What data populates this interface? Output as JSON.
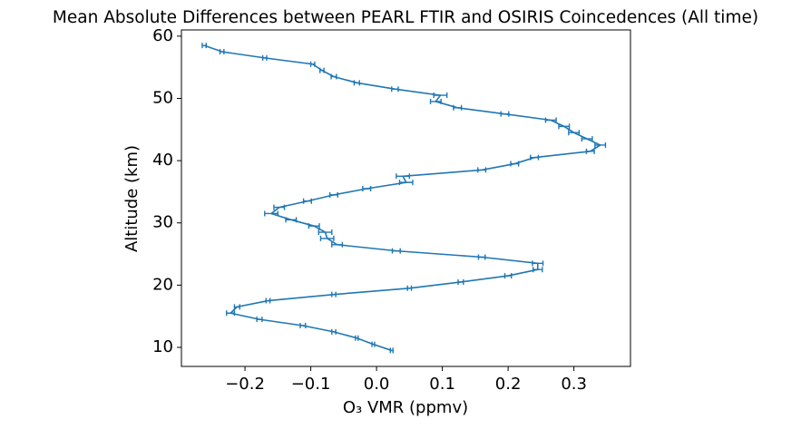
{
  "chart_data": {
    "type": "line",
    "title": "Mean Absolute Differences between PEARL FTIR and OSIRIS Coincedences (All time)",
    "xlabel": "O₃ VMR (ppmv)",
    "ylabel": "Altitude (km)",
    "y": [
      9.5,
      10.5,
      11.5,
      12.5,
      13.5,
      14.5,
      15.5,
      16.5,
      17.5,
      18.5,
      19.5,
      20.5,
      21.5,
      22.5,
      23.5,
      24.5,
      25.5,
      26.5,
      27.5,
      28.5,
      29.5,
      30.5,
      31.5,
      32.5,
      33.5,
      34.5,
      35.5,
      36.5,
      37.5,
      38.5,
      39.5,
      40.5,
      41.5,
      42.5,
      43.5,
      44.5,
      45.5,
      46.5,
      47.5,
      48.5,
      49.5,
      50.5,
      51.5,
      52.5,
      53.5,
      54.5,
      55.5,
      56.5,
      57.5,
      58.5
    ],
    "series": [
      {
        "color": "#1f77b4",
        "values": [
          0.023,
          -0.005,
          -0.03,
          -0.065,
          -0.112,
          -0.178,
          -0.222,
          -0.212,
          -0.165,
          -0.065,
          0.05,
          0.128,
          0.2,
          0.245,
          0.245,
          0.16,
          0.03,
          -0.06,
          -0.075,
          -0.078,
          -0.095,
          -0.13,
          -0.16,
          -0.148,
          -0.105,
          -0.065,
          -0.015,
          0.045,
          0.04,
          0.16,
          0.21,
          0.24,
          0.325,
          0.34,
          0.32,
          0.3,
          0.285,
          0.265,
          0.195,
          0.123,
          0.09,
          0.097,
          0.028,
          -0.03,
          -0.065,
          -0.083,
          -0.097,
          -0.17,
          -0.235,
          -0.262
        ],
        "errors": [
          0.002,
          0.002,
          0.002,
          0.003,
          0.004,
          0.004,
          0.006,
          0.004,
          0.003,
          0.003,
          0.003,
          0.004,
          0.005,
          0.007,
          0.008,
          0.005,
          0.006,
          0.008,
          0.01,
          0.01,
          0.008,
          0.008,
          0.01,
          0.008,
          0.006,
          0.006,
          0.006,
          0.01,
          0.01,
          0.006,
          0.006,
          0.006,
          0.006,
          0.008,
          0.008,
          0.008,
          0.008,
          0.008,
          0.006,
          0.006,
          0.008,
          0.01,
          0.005,
          0.004,
          0.004,
          0.003,
          0.003,
          0.003,
          0.003,
          0.003
        ]
      }
    ],
    "xlim": [
      -0.2966,
      0.386
    ],
    "ylim": [
      6.94,
      61.0
    ],
    "xticks": [
      {
        "value": -0.2,
        "label": "−0.2"
      },
      {
        "value": -0.1,
        "label": "−0.1"
      },
      {
        "value": 0,
        "label": "0.0"
      },
      0.1,
      0.2,
      0.3
    ],
    "yticks": [
      10,
      20,
      30,
      40,
      50,
      60
    ]
  }
}
